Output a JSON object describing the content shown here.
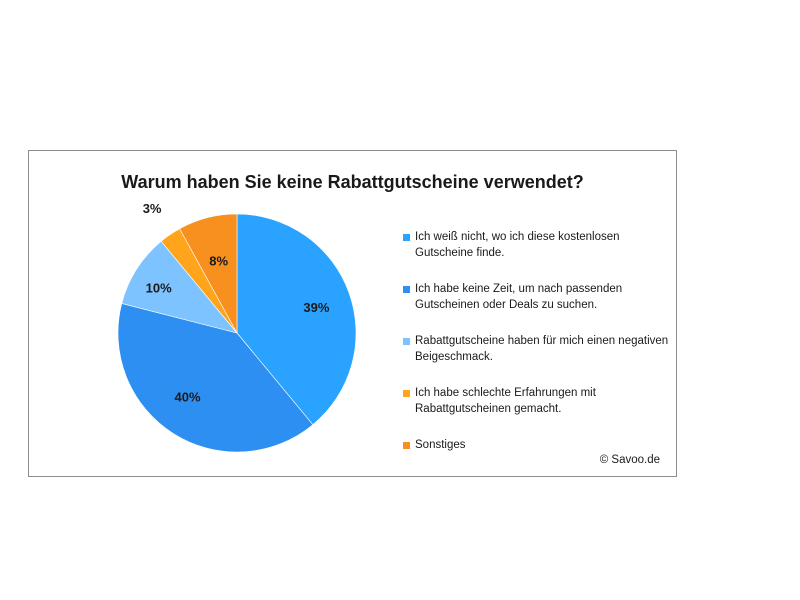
{
  "chart_data": {
    "type": "pie",
    "title": "Warum haben Sie keine Rabattgutscheine verwendet?",
    "slices": [
      {
        "label": "Ich weiß nicht, wo ich diese kostenlosen Gutscheine finde.",
        "value": 39,
        "value_label": "39%",
        "color": "#29a3ff"
      },
      {
        "label": "Ich habe keine Zeit, um nach passenden Gutscheinen oder Deals zu suchen.",
        "value": 40,
        "value_label": "40%",
        "color": "#2d8ff2"
      },
      {
        "label": "Rabattgutscheine haben für mich einen negativen Beigeschmack.",
        "value": 10,
        "value_label": "10%",
        "color": "#7dc3ff"
      },
      {
        "label": "Ich habe schlechte Erfahrungen mit Rabattgutscheinen gemacht.",
        "value": 3,
        "value_label": "3%",
        "color": "#ffa41b"
      },
      {
        "label": "Sonstiges",
        "value": 8,
        "value_label": "8%",
        "color": "#f7901e"
      }
    ],
    "legend_position": "right",
    "start_angle_deg": 0,
    "direction": "clockwise"
  },
  "credit": "© Savoo.de"
}
